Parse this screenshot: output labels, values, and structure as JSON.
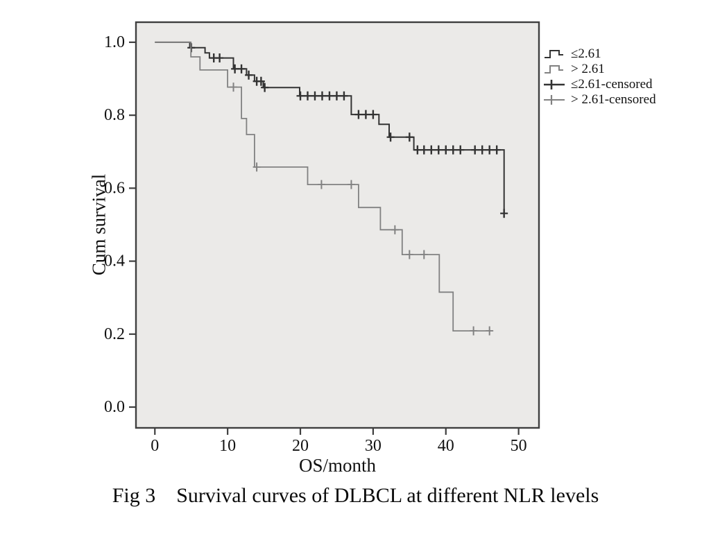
{
  "figure": {
    "caption_prefix": "Fig 3",
    "caption_text": "Survival curves of DLBCL at different NLR levels"
  },
  "legend": {
    "position": "right-outside",
    "items": [
      {
        "label": "≤2.61",
        "symbol": "step-line",
        "color": "#333333"
      },
      {
        "label": "> 2.61",
        "symbol": "step-line",
        "color": "#818181"
      },
      {
        "label": "≤2.61-censored",
        "symbol": "plus",
        "color": "#333333"
      },
      {
        "label": "> 2.61-censored",
        "symbol": "plus",
        "color": "#818181"
      }
    ]
  },
  "chart_data": {
    "type": "line",
    "subtype": "kaplan-meier-step-survival",
    "title": "",
    "xlabel": "OS/month",
    "ylabel": "Cum survival",
    "xlim": [
      -2.6,
      52.8
    ],
    "ylim": [
      -0.057,
      1.055
    ],
    "x_ticks": [
      0,
      10,
      20,
      30,
      40,
      50
    ],
    "y_ticks": [
      "1.0",
      "0.8",
      "0.6",
      "0.4",
      "0.2",
      "0.0"
    ],
    "grid": false,
    "plot_bg": "#ebeae8",
    "border_color": "#3f3f3f",
    "series": [
      {
        "name": "≤2.61",
        "color": "#333333",
        "end_x": 48.0,
        "points": [
          [
            0,
            1.0
          ],
          [
            4.8,
            0.985
          ],
          [
            6.9,
            0.971
          ],
          [
            7.5,
            0.957
          ],
          [
            10.8,
            0.927
          ],
          [
            12.6,
            0.91
          ],
          [
            13.7,
            0.893
          ],
          [
            14.9,
            0.876
          ],
          [
            19.9,
            0.853
          ],
          [
            27.0,
            0.802
          ],
          [
            30.8,
            0.775
          ],
          [
            32.2,
            0.74
          ],
          [
            35.6,
            0.705
          ],
          [
            48.0,
            0.531
          ]
        ],
        "censored": [
          [
            5.0,
            0.985
          ],
          [
            8.1,
            0.957
          ],
          [
            8.9,
            0.957
          ],
          [
            11.0,
            0.927
          ],
          [
            11.9,
            0.927
          ],
          [
            12.9,
            0.91
          ],
          [
            14.0,
            0.893
          ],
          [
            14.6,
            0.893
          ],
          [
            15.1,
            0.876
          ],
          [
            20.0,
            0.853
          ],
          [
            21.0,
            0.853
          ],
          [
            22.0,
            0.853
          ],
          [
            23.0,
            0.853
          ],
          [
            24.0,
            0.853
          ],
          [
            25.0,
            0.853
          ],
          [
            26.0,
            0.853
          ],
          [
            28.0,
            0.802
          ],
          [
            29.0,
            0.802
          ],
          [
            30.0,
            0.802
          ],
          [
            32.4,
            0.74
          ],
          [
            35.0,
            0.74
          ],
          [
            36.1,
            0.705
          ],
          [
            37.0,
            0.705
          ],
          [
            38.0,
            0.705
          ],
          [
            39.0,
            0.705
          ],
          [
            40.0,
            0.705
          ],
          [
            41.0,
            0.705
          ],
          [
            42.0,
            0.705
          ],
          [
            44.0,
            0.705
          ],
          [
            45.0,
            0.705
          ],
          [
            46.0,
            0.705
          ],
          [
            47.0,
            0.705
          ],
          [
            48.0,
            0.531
          ]
        ]
      },
      {
        "name": "> 2.61",
        "color": "#818181",
        "end_x": 46.4,
        "points": [
          [
            0,
            1.0
          ],
          [
            4.95,
            0.96
          ],
          [
            6.2,
            0.924
          ],
          [
            10.0,
            0.877
          ],
          [
            11.9,
            0.791
          ],
          [
            12.6,
            0.747
          ],
          [
            13.7,
            0.658
          ],
          [
            21.0,
            0.61
          ],
          [
            28.0,
            0.547
          ],
          [
            31.0,
            0.486
          ],
          [
            34.0,
            0.418
          ],
          [
            39.1,
            0.315
          ],
          [
            41.0,
            0.209
          ]
        ],
        "censored": [
          [
            10.8,
            0.877
          ],
          [
            14.0,
            0.658
          ],
          [
            22.9,
            0.61
          ],
          [
            27.0,
            0.61
          ],
          [
            33.0,
            0.486
          ],
          [
            35.0,
            0.418
          ],
          [
            37.0,
            0.418
          ],
          [
            43.8,
            0.209
          ],
          [
            46.0,
            0.209
          ]
        ]
      }
    ]
  }
}
